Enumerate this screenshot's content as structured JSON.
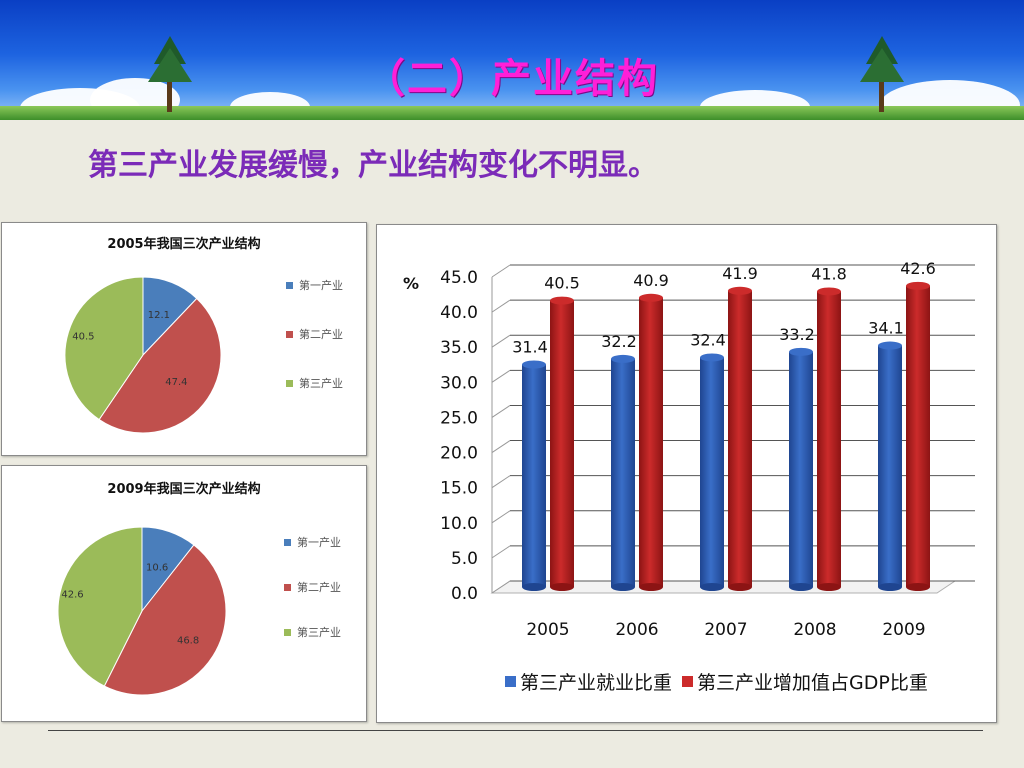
{
  "slide": {
    "title": "（二）产业结构",
    "subtitle": "第三产业发展缓慢，产业结构变化不明显。"
  },
  "colors": {
    "primary": "#4a7ebb",
    "secondary": "#c0504d",
    "tertiary": "#9bbb59",
    "bar_blue": "#3a6ec8",
    "bar_red": "#cc2b2b",
    "title_pink": "#ff1fd8",
    "subtitle_purple": "#7b2bb8"
  },
  "chart_data": [
    {
      "type": "pie",
      "title": "2005年我国三次产业结构",
      "categories": [
        "第一产业",
        "第二产业",
        "第三产业"
      ],
      "values": [
        12.1,
        47.4,
        40.5
      ],
      "legend_position": "right"
    },
    {
      "type": "pie",
      "title": "2009年我国三次产业结构",
      "categories": [
        "第一产业",
        "第二产业",
        "第三产业"
      ],
      "values": [
        10.6,
        46.8,
        42.6
      ],
      "legend_position": "right"
    },
    {
      "type": "bar",
      "ylabel": "%",
      "categories": [
        "2005",
        "2006",
        "2007",
        "2008",
        "2009"
      ],
      "series": [
        {
          "name": "第三产业就业比重",
          "values": [
            31.4,
            32.2,
            32.4,
            33.2,
            34.1
          ]
        },
        {
          "name": "第三产业增加值占GDP比重",
          "values": [
            40.5,
            40.9,
            41.9,
            41.8,
            42.6
          ]
        }
      ],
      "ylim": [
        0,
        45
      ],
      "yticks": [
        "0.0",
        "5.0",
        "10.0",
        "15.0",
        "20.0",
        "25.0",
        "30.0",
        "35.0",
        "40.0",
        "45.0"
      ],
      "grid": true,
      "legend_position": "bottom"
    }
  ]
}
